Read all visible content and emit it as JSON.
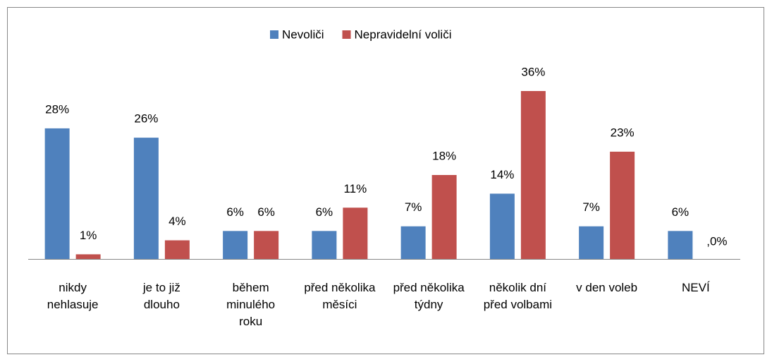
{
  "chart_data": {
    "type": "bar",
    "categories": [
      "nikdy nehlasuje",
      "je to již dlouho",
      "během minulého roku",
      "před několika měsíci",
      "před několika týdny",
      "několik dní před volbami",
      "v den voleb",
      "NEVÍ"
    ],
    "series": [
      {
        "name": "Nevoliči",
        "color": "#4f81bd",
        "values": [
          28,
          26,
          6,
          6,
          7,
          14,
          7,
          6
        ],
        "value_labels": [
          "28%",
          "26%",
          "6%",
          "6%",
          "7%",
          "14%",
          "7%",
          "6%"
        ]
      },
      {
        "name": "Nepravidelní voliči",
        "color": "#c0504d",
        "values": [
          1,
          4,
          6,
          11,
          18,
          36,
          23,
          0
        ],
        "value_labels": [
          "1%",
          "4%",
          "6%",
          "11%",
          "18%",
          "36%",
          "23%",
          ",0%"
        ]
      }
    ],
    "legend": "top"
  }
}
